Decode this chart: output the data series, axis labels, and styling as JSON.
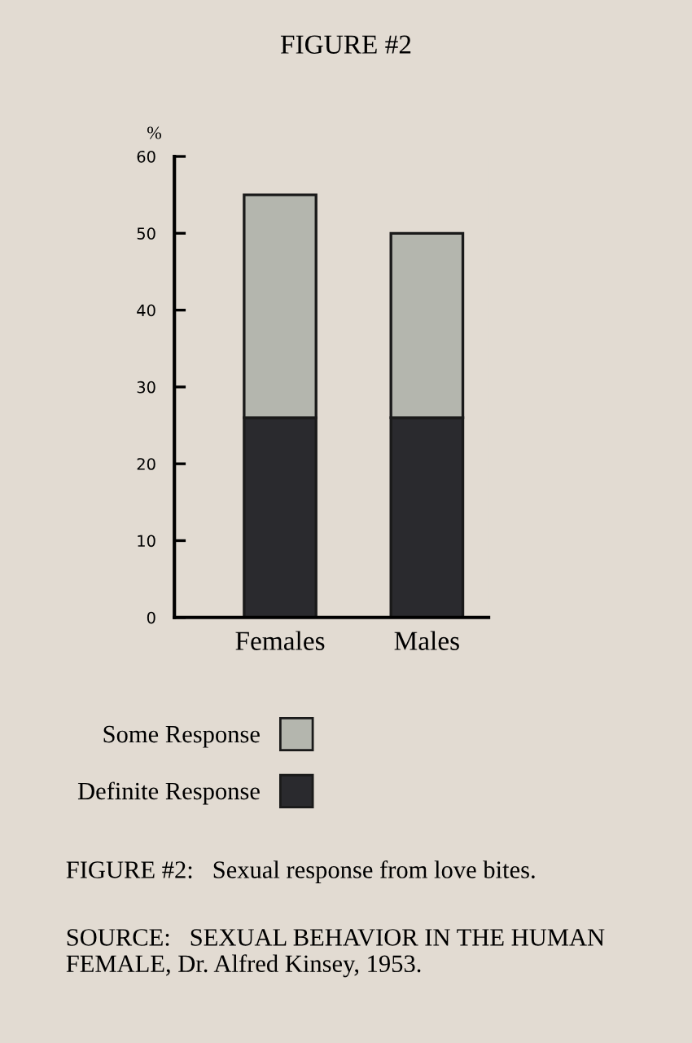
{
  "chart_data": {
    "type": "bar",
    "title": "FIGURE #2",
    "ylabel": "%",
    "categories": [
      "Females",
      "Males"
    ],
    "stacked": true,
    "series": [
      {
        "name": "Definite Response",
        "color": "#2a2a2e",
        "values": [
          26,
          26
        ]
      },
      {
        "name": "Some Response",
        "color": "#b4b6ae",
        "values": [
          29,
          24
        ]
      }
    ],
    "ylim": [
      0,
      60
    ],
    "yticks": [
      0,
      10,
      20,
      30,
      40,
      50,
      60
    ],
    "grid": false,
    "legend": "bottom left",
    "annotations": [
      "FIGURE #2:   Sexual response from love bites.",
      "SOURCE:   SEXUAL BEHAVIOR IN THE HUMAN FEMALE, Dr. Alfred Kinsey, 1953."
    ]
  }
}
